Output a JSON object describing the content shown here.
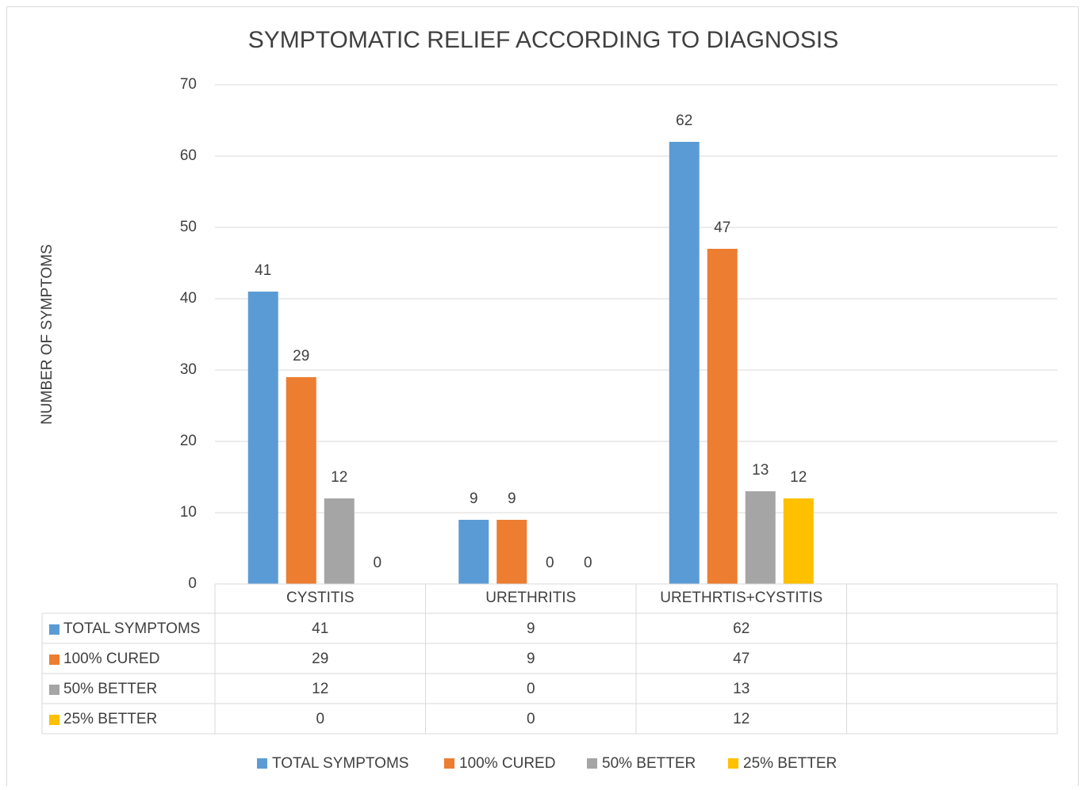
{
  "chart_data": {
    "type": "bar",
    "title": "SYMPTOMATIC RELIEF ACCORDING TO DIAGNOSIS",
    "y_label": "NUMBER OF SYMPTOMS",
    "categories": [
      "CYSTITIS",
      "URETHRITIS",
      "URETHRTIS+CYSTITIS",
      null
    ],
    "series": [
      {
        "name": "TOTAL SYMPTOMS",
        "color": "#5b9bd5",
        "values": [
          41,
          9,
          62,
          null
        ]
      },
      {
        "name": "100% CURED",
        "color": "#ed7d31",
        "values": [
          29,
          9,
          47,
          null
        ]
      },
      {
        "name": "50% BETTER",
        "color": "#a5a5a5",
        "values": [
          12,
          0,
          13,
          null
        ]
      },
      {
        "name": "25% BETTER",
        "color": "#ffc000",
        "values": [
          0,
          0,
          12,
          null
        ]
      }
    ],
    "ylim": [
      0,
      70
    ],
    "yticks": [
      0,
      10,
      20,
      30,
      40,
      50,
      60,
      70
    ],
    "grid": true,
    "data_table": true,
    "legend": "bottom"
  }
}
